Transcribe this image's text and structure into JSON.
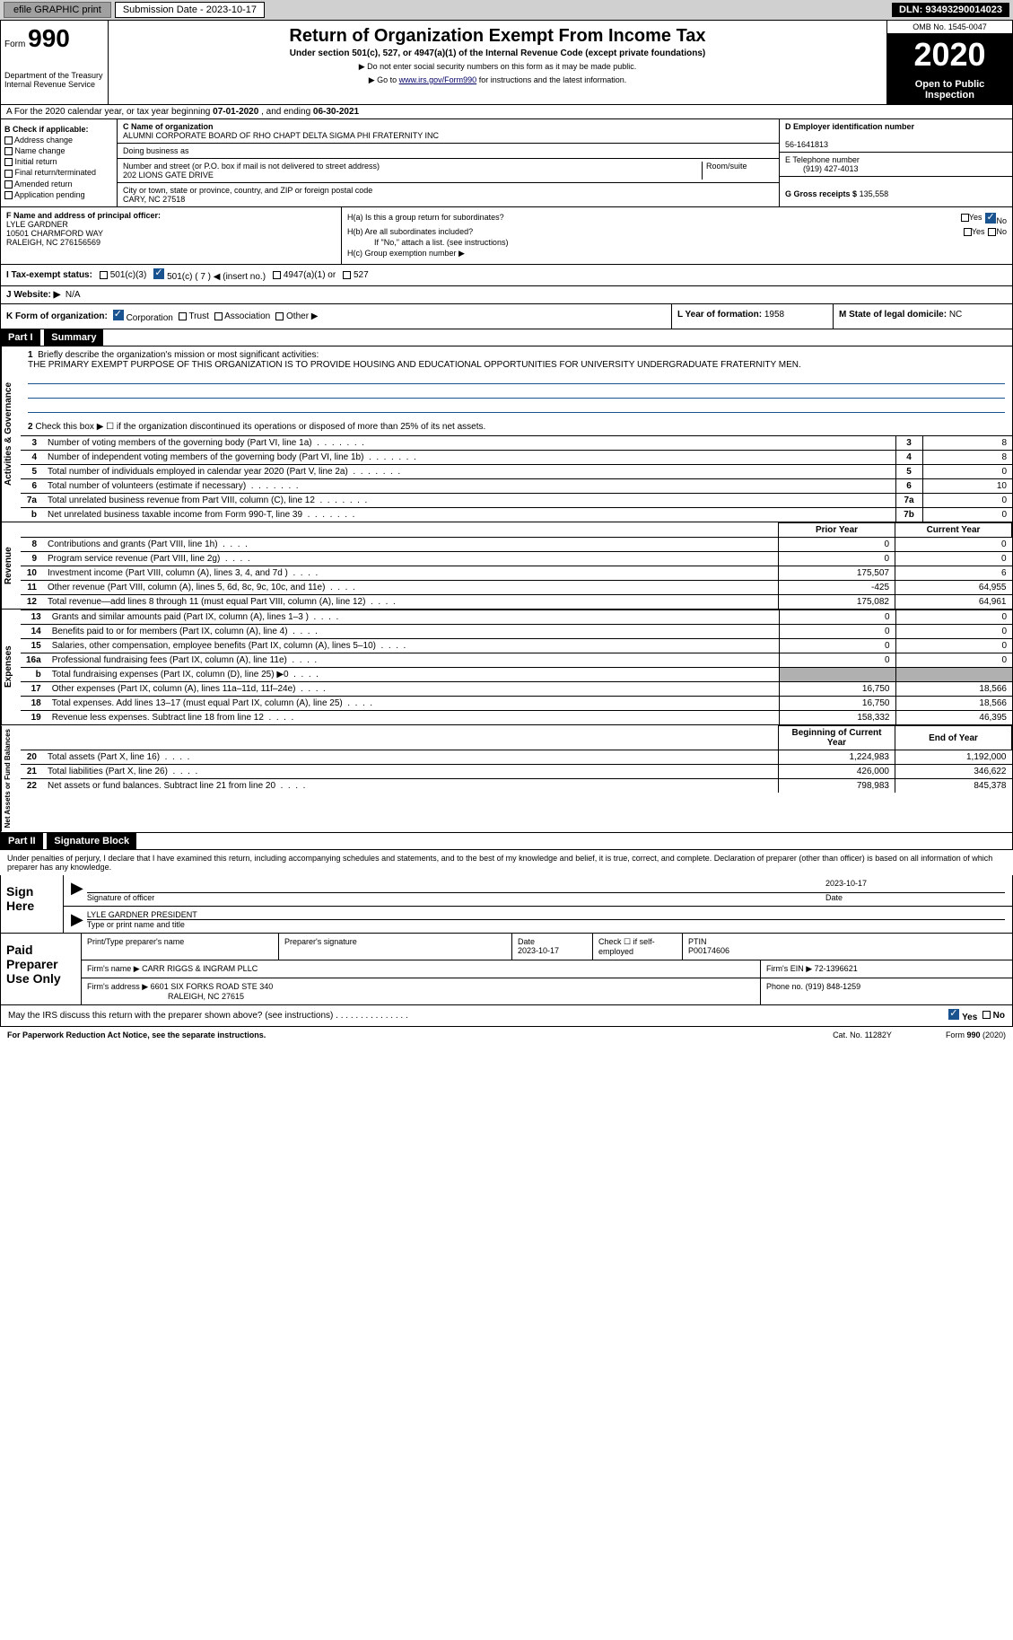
{
  "topbar": {
    "efile": "efile GRAPHIC print",
    "sub_label": "Submission Date - 2023-10-17",
    "dln": "DLN: 93493290014023"
  },
  "header": {
    "form_lbl": "Form",
    "form_num": "990",
    "dept": "Department of the Treasury\nInternal Revenue Service",
    "title": "Return of Organization Exempt From Income Tax",
    "subtitle": "Under section 501(c), 527, or 4947(a)(1) of the Internal Revenue Code (except private foundations)",
    "instr1": "▶ Do not enter social security numbers on this form as it may be made public.",
    "instr2_pre": "▶ Go to ",
    "instr2_link": "www.irs.gov/Form990",
    "instr2_post": " for instructions and the latest information.",
    "omb": "OMB No. 1545-0047",
    "year": "2020",
    "public": "Open to Public Inspection"
  },
  "a": {
    "text_pre": "A For the 2020 calendar year, or tax year beginning ",
    "begin": "07-01-2020",
    "mid": " , and ending ",
    "end": "06-30-2021"
  },
  "b": {
    "title": "B Check if applicable:",
    "opts": [
      "Address change",
      "Name change",
      "Initial return",
      "Final return/terminated",
      "Amended return",
      "Application pending"
    ]
  },
  "c": {
    "name_lbl": "C Name of organization",
    "name": "ALUMNI CORPORATE BOARD OF RHO CHAPT DELTA SIGMA PHI FRATERNITY INC",
    "dba_lbl": "Doing business as",
    "addr_lbl": "Number and street (or P.O. box if mail is not delivered to street address)",
    "room_lbl": "Room/suite",
    "addr": "202 LIONS GATE DRIVE",
    "city_lbl": "City or town, state or province, country, and ZIP or foreign postal code",
    "city": "CARY, NC  27518"
  },
  "d": {
    "lbl": "D Employer identification number",
    "val": "56-1641813"
  },
  "e": {
    "lbl": "E Telephone number",
    "val": "(919) 427-4013"
  },
  "g": {
    "lbl": "G Gross receipts $",
    "val": "135,558"
  },
  "f": {
    "lbl": "F  Name and address of principal officer:",
    "name": "LYLE GARDNER",
    "addr1": "10501 CHARMFORD WAY",
    "addr2": "RALEIGH, NC  276156569"
  },
  "h": {
    "a": "H(a)  Is this a group return for subordinates?",
    "b": "H(b)  Are all subordinates included?",
    "b_note": "If \"No,\" attach a list. (see instructions)",
    "c": "H(c)  Group exemption number ▶",
    "yes": "Yes",
    "no": "No"
  },
  "i": {
    "lbl": "I   Tax-exempt status:",
    "o1": "501(c)(3)",
    "o2": "501(c) ( 7 ) ◀ (insert no.)",
    "o3": "4947(a)(1) or",
    "o4": "527"
  },
  "j": {
    "lbl": "J   Website: ▶",
    "val": "N/A"
  },
  "k": {
    "lbl": "K Form of organization:",
    "o1": "Corporation",
    "o2": "Trust",
    "o3": "Association",
    "o4": "Other ▶"
  },
  "l": {
    "lbl": "L Year of formation:",
    "val": "1958"
  },
  "m": {
    "lbl": "M State of legal domicile:",
    "val": "NC"
  },
  "part1": {
    "hdr": "Part I",
    "title": "Summary",
    "q1_lbl": "1",
    "q1": "Briefly describe the organization's mission or most significant activities:",
    "mission": "THE PRIMARY EXEMPT PURPOSE OF THIS ORGANIZATION IS TO PROVIDE HOUSING AND EDUCATIONAL OPPORTUNITIES FOR UNIVERSITY UNDERGRADUATE FRATERNITY MEN.",
    "q2": "Check this box ▶ ☐  if the organization discontinued its operations or disposed of more than 25% of its net assets.",
    "side1": "Activities & Governance",
    "rows_gov": [
      {
        "n": "3",
        "t": "Number of voting members of the governing body (Part VI, line 1a)",
        "box": "3",
        "v": "8"
      },
      {
        "n": "4",
        "t": "Number of independent voting members of the governing body (Part VI, line 1b)",
        "box": "4",
        "v": "8"
      },
      {
        "n": "5",
        "t": "Total number of individuals employed in calendar year 2020 (Part V, line 2a)",
        "box": "5",
        "v": "0"
      },
      {
        "n": "6",
        "t": "Total number of volunteers (estimate if necessary)",
        "box": "6",
        "v": "10"
      },
      {
        "n": "7a",
        "t": "Total unrelated business revenue from Part VIII, column (C), line 12",
        "box": "7a",
        "v": "0"
      },
      {
        "n": "b",
        "t": "Net unrelated business taxable income from Form 990-T, line 39",
        "box": "7b",
        "v": "0"
      }
    ],
    "py": "Prior Year",
    "cy": "Current Year",
    "side2": "Revenue",
    "rows_rev": [
      {
        "n": "8",
        "t": "Contributions and grants (Part VIII, line 1h)",
        "py": "0",
        "cy": "0"
      },
      {
        "n": "9",
        "t": "Program service revenue (Part VIII, line 2g)",
        "py": "0",
        "cy": "0"
      },
      {
        "n": "10",
        "t": "Investment income (Part VIII, column (A), lines 3, 4, and 7d )",
        "py": "175,507",
        "cy": "6"
      },
      {
        "n": "11",
        "t": "Other revenue (Part VIII, column (A), lines 5, 6d, 8c, 9c, 10c, and 11e)",
        "py": "-425",
        "cy": "64,955"
      },
      {
        "n": "12",
        "t": "Total revenue—add lines 8 through 11 (must equal Part VIII, column (A), line 12)",
        "py": "175,082",
        "cy": "64,961"
      }
    ],
    "side3": "Expenses",
    "rows_exp": [
      {
        "n": "13",
        "t": "Grants and similar amounts paid (Part IX, column (A), lines 1–3 )",
        "py": "0",
        "cy": "0"
      },
      {
        "n": "14",
        "t": "Benefits paid to or for members (Part IX, column (A), line 4)",
        "py": "0",
        "cy": "0"
      },
      {
        "n": "15",
        "t": "Salaries, other compensation, employee benefits (Part IX, column (A), lines 5–10)",
        "py": "0",
        "cy": "0"
      },
      {
        "n": "16a",
        "t": "Professional fundraising fees (Part IX, column (A), line 11e)",
        "py": "0",
        "cy": "0"
      },
      {
        "n": "b",
        "t": "Total fundraising expenses (Part IX, column (D), line 25) ▶0",
        "py": "",
        "cy": "",
        "shaded": true
      },
      {
        "n": "17",
        "t": "Other expenses (Part IX, column (A), lines 11a–11d, 11f–24e)",
        "py": "16,750",
        "cy": "18,566"
      },
      {
        "n": "18",
        "t": "Total expenses. Add lines 13–17 (must equal Part IX, column (A), line 25)",
        "py": "16,750",
        "cy": "18,566"
      },
      {
        "n": "19",
        "t": "Revenue less expenses. Subtract line 18 from line 12",
        "py": "158,332",
        "cy": "46,395"
      }
    ],
    "side4": "Net Assets or Fund Balances",
    "bcy": "Beginning of Current Year",
    "ecy": "End of Year",
    "rows_net": [
      {
        "n": "20",
        "t": "Total assets (Part X, line 16)",
        "py": "1,224,983",
        "cy": "1,192,000"
      },
      {
        "n": "21",
        "t": "Total liabilities (Part X, line 26)",
        "py": "426,000",
        "cy": "346,622"
      },
      {
        "n": "22",
        "t": "Net assets or fund balances. Subtract line 21 from line 20",
        "py": "798,983",
        "cy": "845,378"
      }
    ]
  },
  "part2": {
    "hdr": "Part II",
    "title": "Signature Block",
    "decl": "Under penalties of perjury, I declare that I have examined this return, including accompanying schedules and statements, and to the best of my knowledge and belief, it is true, correct, and complete. Declaration of preparer (other than officer) is based on all information of which preparer has any knowledge.",
    "sign_here": "Sign Here",
    "sig_lbl": "Signature of officer",
    "date_lbl": "Date",
    "sig_date": "2023-10-17",
    "officer": "LYLE GARDNER PRESIDENT",
    "officer_lbl": "Type or print name and title"
  },
  "paid": {
    "lbl": "Paid Preparer Use Only",
    "h1": "Print/Type preparer's name",
    "h2": "Preparer's signature",
    "h3": "Date",
    "h3v": "2023-10-17",
    "h4": "Check ☐ if self-employed",
    "h5": "PTIN",
    "h5v": "P00174606",
    "firm_lbl": "Firm's name    ▶",
    "firm": "CARR RIGGS & INGRAM PLLC",
    "ein_lbl": "Firm's EIN ▶",
    "ein": "72-1396621",
    "addr_lbl": "Firm's address ▶",
    "addr": "6601 SIX FORKS ROAD STE 340",
    "addr2": "RALEIGH, NC  27615",
    "phone_lbl": "Phone no.",
    "phone": "(919) 848-1259"
  },
  "may": {
    "q": "May the IRS discuss this return with the preparer shown above? (see instructions)",
    "yes": "Yes",
    "no": "No"
  },
  "footer": {
    "l": "For Paperwork Reduction Act Notice, see the separate instructions.",
    "c": "Cat. No. 11282Y",
    "r": "Form 990 (2020)"
  }
}
